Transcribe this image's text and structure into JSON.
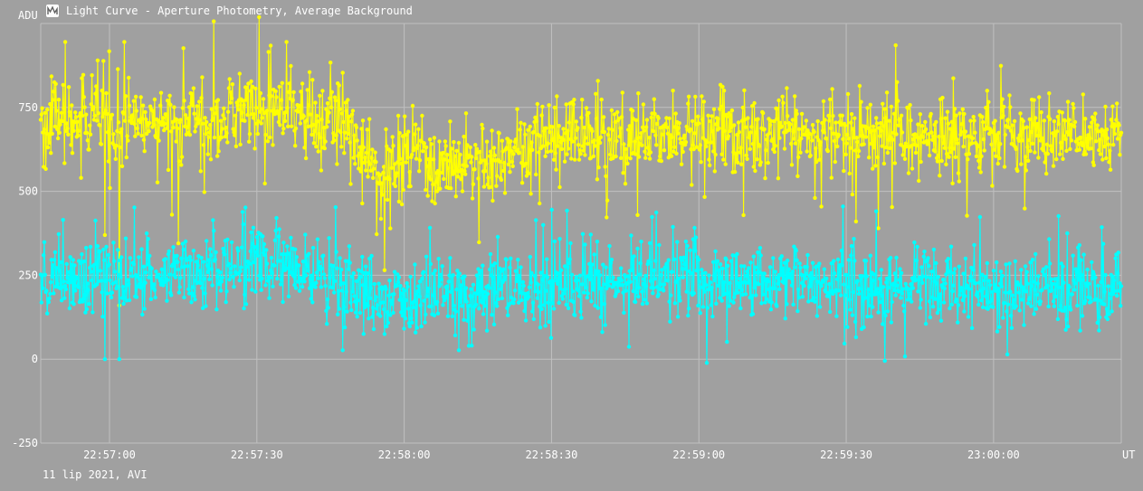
{
  "window": {
    "title": "Light Curve - Aperture Photometry, Average Background",
    "icon": "light-curve-app-icon"
  },
  "footer": {
    "text": "11 lip 2021, AVI"
  },
  "chart_data": {
    "type": "line",
    "title": "Light Curve - Aperture Photometry, Average Background",
    "ylabel": "ADU",
    "xlabel": "UT",
    "ylim": [
      -250,
      1000
    ],
    "y_ticks": [
      -250,
      0,
      250,
      500,
      750
    ],
    "x_range": [
      "22:56:46",
      "23:00:26"
    ],
    "x_ticks": [
      "22:57:00",
      "22:57:30",
      "22:58:00",
      "22:58:30",
      "22:59:00",
      "22:59:30",
      "23:00:00"
    ],
    "grid": true,
    "background_color": "#a0a0a0",
    "grid_color": "#c0c0c0",
    "series": [
      {
        "color": "#ffff00",
        "point_count": 1500,
        "baseline": [
          {
            "x": "22:56:46",
            "y": 700
          },
          {
            "x": "22:57:00",
            "y": 720
          },
          {
            "x": "22:57:15",
            "y": 705
          },
          {
            "x": "22:57:30",
            "y": 740
          },
          {
            "x": "22:57:45",
            "y": 720
          },
          {
            "x": "22:57:52",
            "y": 630
          },
          {
            "x": "22:57:55",
            "y": 510
          },
          {
            "x": "22:58:00",
            "y": 620
          },
          {
            "x": "22:58:10",
            "y": 560
          },
          {
            "x": "22:58:20",
            "y": 600
          },
          {
            "x": "22:58:30",
            "y": 660
          },
          {
            "x": "22:59:00",
            "y": 670
          },
          {
            "x": "22:59:30",
            "y": 670
          },
          {
            "x": "23:00:00",
            "y": 660
          },
          {
            "x": "23:00:26",
            "y": 680
          }
        ],
        "noise_sd": 60,
        "outliers": [
          {
            "x": "22:57:02",
            "y": 160
          },
          {
            "x": "22:56:59",
            "y": 370
          },
          {
            "x": "22:57:14",
            "y": 345
          },
          {
            "x": "22:57:56",
            "y": 265
          },
          {
            "x": "22:56:51",
            "y": 945
          },
          {
            "x": "22:57:03",
            "y": 945
          },
          {
            "x": "22:57:36",
            "y": 945
          },
          {
            "x": "22:59:40",
            "y": 935
          }
        ]
      },
      {
        "color": "#00ffff",
        "point_count": 1500,
        "baseline": [
          {
            "x": "22:56:46",
            "y": 235
          },
          {
            "x": "22:57:15",
            "y": 240
          },
          {
            "x": "22:57:30",
            "y": 285
          },
          {
            "x": "22:57:45",
            "y": 250
          },
          {
            "x": "22:57:55",
            "y": 175
          },
          {
            "x": "22:58:10",
            "y": 205
          },
          {
            "x": "22:58:30",
            "y": 230
          },
          {
            "x": "22:59:00",
            "y": 235
          },
          {
            "x": "22:59:30",
            "y": 225
          },
          {
            "x": "23:00:00",
            "y": 210
          },
          {
            "x": "23:00:26",
            "y": 220
          }
        ],
        "noise_sd": 58,
        "outliers": [
          {
            "x": "22:56:59",
            "y": 0
          },
          {
            "x": "22:57:02",
            "y": 0
          },
          {
            "x": "22:59:42",
            "y": 8
          },
          {
            "x": "22:58:30",
            "y": 445
          }
        ]
      }
    ]
  }
}
